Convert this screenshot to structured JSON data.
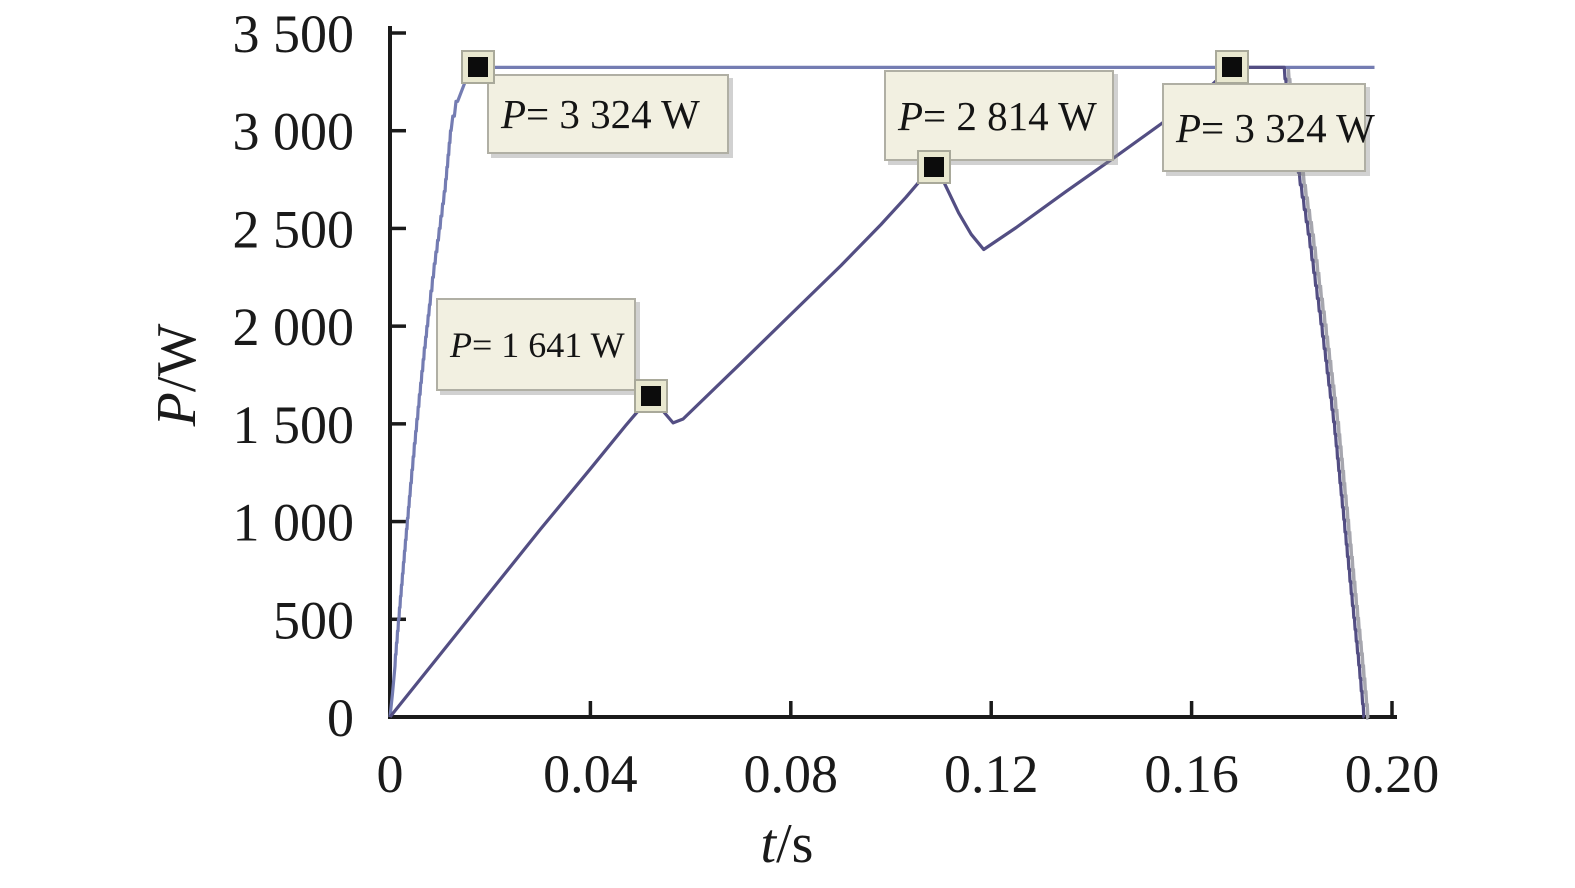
{
  "figure": {
    "background": "#ffffff"
  },
  "chart_data": {
    "type": "line",
    "title": "",
    "xlabel": "t/s",
    "xlabel_var": "t",
    "xlabel_unit": "/s",
    "ylabel": "P/W",
    "ylabel_var": "P",
    "ylabel_unit": "/W",
    "xlim": [
      0,
      0.2
    ],
    "ylim": [
      0,
      3500
    ],
    "grid": false,
    "legend": "none",
    "axis_color": "#1a1a1a",
    "x_ticks": [
      {
        "value": 0,
        "label": "0"
      },
      {
        "value": 0.04,
        "label": "0.04"
      },
      {
        "value": 0.08,
        "label": "0.08"
      },
      {
        "value": 0.12,
        "label": "0.12"
      },
      {
        "value": 0.16,
        "label": "0.16"
      },
      {
        "value": 0.2,
        "label": "0.20"
      }
    ],
    "y_ticks": [
      {
        "value": 0,
        "label": "0"
      },
      {
        "value": 500,
        "label": "500"
      },
      {
        "value": 1000,
        "label": "1 000"
      },
      {
        "value": 1500,
        "label": "1 500"
      },
      {
        "value": 2000,
        "label": "2 000"
      },
      {
        "value": 2500,
        "label": "2 500"
      },
      {
        "value": 3000,
        "label": "3 000"
      },
      {
        "value": 3500,
        "label": "3 500"
      }
    ],
    "series": [
      {
        "name": "series-1",
        "color": "#747cb2",
        "points": [
          [
            0,
            0
          ],
          [
            0.0005,
            120
          ],
          [
            0.001,
            260
          ],
          [
            0.002,
            560
          ],
          [
            0.003,
            850
          ],
          [
            0.004,
            1130
          ],
          [
            0.005,
            1400
          ],
          [
            0.006,
            1650
          ],
          [
            0.007,
            1890
          ],
          [
            0.008,
            2110
          ],
          [
            0.009,
            2320
          ],
          [
            0.01,
            2500
          ],
          [
            0.011,
            2690
          ],
          [
            0.0122,
            3000
          ],
          [
            0.0135,
            3150
          ],
          [
            0.015,
            3250
          ],
          [
            0.016,
            3300
          ],
          [
            0.0175,
            3324
          ],
          [
            0.1965,
            3324
          ]
        ]
      },
      {
        "name": "series-2",
        "color": "#534e83",
        "shadow_color": "#a6a6ae",
        "points": [
          [
            0,
            0
          ],
          [
            0.01,
            320
          ],
          [
            0.02,
            640
          ],
          [
            0.03,
            960
          ],
          [
            0.04,
            1270
          ],
          [
            0.047,
            1490
          ],
          [
            0.052,
            1641
          ],
          [
            0.0565,
            1505
          ],
          [
            0.0585,
            1525
          ],
          [
            0.07,
            1810
          ],
          [
            0.08,
            2060
          ],
          [
            0.09,
            2310
          ],
          [
            0.098,
            2520
          ],
          [
            0.103,
            2660
          ],
          [
            0.106,
            2750
          ],
          [
            0.1085,
            2814
          ],
          [
            0.1105,
            2740
          ],
          [
            0.1135,
            2580
          ],
          [
            0.116,
            2470
          ],
          [
            0.1185,
            2392
          ],
          [
            0.125,
            2505
          ],
          [
            0.135,
            2690
          ],
          [
            0.145,
            2870
          ],
          [
            0.155,
            3055
          ],
          [
            0.162,
            3185
          ],
          [
            0.1655,
            3270
          ],
          [
            0.168,
            3324
          ],
          [
            0.1785,
            3324
          ],
          [
            0.18,
            3030
          ],
          [
            0.1815,
            2786
          ],
          [
            0.1835,
            2470
          ],
          [
            0.186,
            2010
          ],
          [
            0.1885,
            1510
          ],
          [
            0.1905,
            1010
          ],
          [
            0.192,
            630
          ],
          [
            0.1935,
            265
          ],
          [
            0.1945,
            0
          ]
        ]
      }
    ],
    "annotations": [
      {
        "label": "P = 3 324 W",
        "label_var": "P",
        "label_rest": " = 3 324 W",
        "t": 0.0175,
        "P": 3324
      },
      {
        "label": "P = 1 641 W",
        "label_var": "P",
        "label_rest": " = 1 641 W",
        "t": 0.052,
        "P": 1641
      },
      {
        "label": "P = 2 814 W",
        "label_var": "P",
        "label_rest": " = 2 814 W",
        "t": 0.1085,
        "P": 2814
      },
      {
        "label": "P = 3 324 W",
        "label_var": "P",
        "label_rest": " = 3 324 W",
        "t": 0.168,
        "P": 3324
      }
    ],
    "annotation_style": {
      "fill": "#f2f0e1",
      "border": "#b0afa4"
    }
  }
}
